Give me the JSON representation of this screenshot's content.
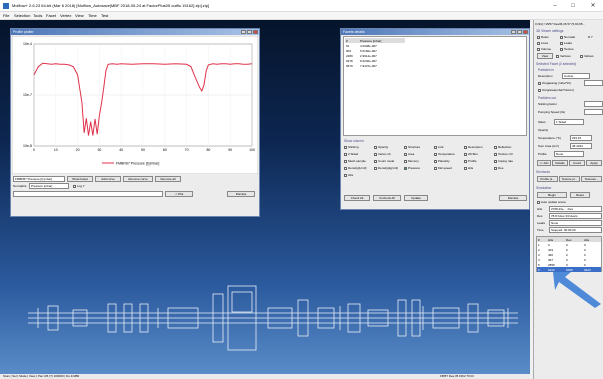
{
  "titlebar": {
    "title": "Molflow+ 2.6.23 64-bit (Mar 6 2018) [Molflow_Autosave|MBF 2018-05-24 at FactorPlus05 outflo 15162].zip].zip]",
    "minimize": "–",
    "maximize": "□",
    "close": "✕"
  },
  "menu": [
    "File",
    "Selection",
    "Tools",
    "Facet",
    "Vertex",
    "View",
    "Time",
    "Test"
  ],
  "profile_window": {
    "title": "Profile plotter",
    "legend": "FMBFB7 Pressure [l] [mbar]",
    "facet_select": "FMBFB7 Pressure [l] [mbar]",
    "normalize_label": "Normalize",
    "normalize_value": "Pressure [mbar]",
    "logy_label": "Log Y",
    "buttons": [
      "Show Facet",
      "Add curve",
      "Remove curve",
      "Remove all"
    ],
    "plot_button": "-> Plot",
    "dismiss": "Dismiss"
  },
  "chart_data": {
    "type": "line",
    "title": "",
    "xlabel": "",
    "ylabel": "",
    "ylog": true,
    "ylim": [
      0.0001,
      0.01
    ],
    "y_tick_labels": [
      "10e-4",
      "10e-7",
      "10e-8"
    ],
    "x_tick_labels": [
      "0",
      "10",
      "20",
      "30",
      "40",
      "50",
      "60",
      "70",
      "80",
      "90",
      "100"
    ],
    "series": [
      {
        "name": "FMBFB7 Pressure [l] [mbar]",
        "color": "#e0314a",
        "x": [
          0,
          2,
          4,
          6,
          8,
          10,
          12,
          14,
          16,
          18,
          20,
          22,
          23,
          24,
          25,
          26,
          27,
          28,
          29,
          30,
          31,
          32,
          33,
          34,
          36,
          38,
          40,
          45,
          50,
          55,
          60,
          65,
          70,
          72,
          74,
          76,
          77,
          78,
          79,
          80,
          82,
          84,
          86,
          88,
          90,
          92,
          94,
          96,
          98,
          100
        ],
        "y": [
          0.0025,
          0.0036,
          0.0042,
          0.0041,
          0.004,
          0.0041,
          0.004,
          0.004,
          0.0039,
          0.0036,
          0.0025,
          0.0007,
          0.00018,
          0.00035,
          0.00016,
          0.0003,
          0.00016,
          0.00034,
          0.00017,
          0.0004,
          0.0007,
          0.0014,
          0.003,
          0.004,
          0.0041,
          0.004,
          0.0041,
          0.004,
          0.0041,
          0.0041,
          0.004,
          0.0041,
          0.004,
          0.0036,
          0.0022,
          0.0014,
          0.0012,
          0.0016,
          0.003,
          0.0039,
          0.0041,
          0.004,
          0.0041,
          0.0041,
          0.004,
          0.0041,
          0.0041,
          0.004,
          0.004,
          0.0041
        ]
      }
    ]
  },
  "facets_window": {
    "title": "Facets details",
    "columns": [
      "#",
      "Pressure [mbar]"
    ],
    "rows": [
      [
        "91",
        "4.0938e-007"
      ],
      [
        "903",
        "5.0160e-007"
      ],
      [
        "2489",
        "2.9914e-007"
      ],
      [
        "9278",
        "9.0240e-007"
      ],
      [
        "9679",
        "7.9437e-007"
      ]
    ],
    "show_column_label": "Show column",
    "checkboxes": [
      "Sticking",
      "Opacity",
      "Structure",
      "Link",
      "Desorption",
      "Reflection",
      "2 Sided",
      "Vertex nb",
      "Area",
      "Temperature",
      "2D Box",
      "Texture UV",
      "Mesh sample",
      "Count mode",
      "Memory",
      "Planarity",
      "Profile",
      "Imping rate",
      "Density[1/m3]",
      "Density[kg/m3]",
      "Pressure",
      "Mol.speed",
      "Hits",
      "Des.",
      "Abs"
    ],
    "check_all": "Check All",
    "uncheck_all": "Uncheck All",
    "update": "Update",
    "dismiss": "Dismiss"
  },
  "right_panel": {
    "header": "0 (94) f 15/57 Des36,36 57 (5,90,95...",
    "viewer_settings": "3D Viewer settings",
    "viewer_options": [
      "Rules",
      "Normals",
      "Lines",
      "Leaks",
      "Volume",
      "Texture",
      "View",
      "Vertices",
      "Indices"
    ],
    "zoom_value": "D.7",
    "selected_facet": "Selected Facet (0 selected)",
    "particles_in": "Particles in",
    "desorption_label": "Desorption",
    "desorption_value": "Cosine",
    "outgassing_label": "Outgassing (mbar*l/s)",
    "outgassing_unit": "Outg/area(mbar*l/s/cm²)",
    "particles_out": "Particles out",
    "sticking_label": "Sticking factor",
    "pumping_label": "Pumping Speed (l/s)",
    "sides_label": "Sides",
    "sides_value": "1 Sided",
    "opacity_label": "Opacity",
    "temperature_label": "Temperature (°K)",
    "temperature_value": "293.15",
    "area_label": "Sum Area (cm²)",
    "area_value": "38.4234",
    "profile_label": "Profile",
    "profile_value": "None",
    "facet_buttons": [
      "<< Adv",
      "Details",
      "Coord",
      "Apply"
    ],
    "shortcuts_label": "Shortcuts",
    "shortcut_buttons": [
      "Profile pl...",
      "Texture pl...",
      "Textures..."
    ],
    "simulation_label": "Simulation",
    "start_button": "Begin",
    "reset_button": "Reset",
    "auto_update": "Auto update scene",
    "stats": [
      [
        "Hits",
        "2768.43e ... Des"
      ],
      [
        "Des",
        "78.8 Kdes 3/3 des/s"
      ],
      [
        "Leaks",
        "None"
      ],
      [
        "Time",
        "Stopped: 00:00:00"
      ]
    ],
    "table_headers": [
      "#",
      "Hits",
      "Des",
      "Abs"
    ],
    "table_rows": [
      [
        "1",
        "0",
        "0",
        "0"
      ],
      [
        "2",
        "403",
        "0",
        "0"
      ],
      [
        "3",
        "460",
        "0",
        "0"
      ],
      [
        "4",
        "397",
        "0",
        "0"
      ],
      [
        "5",
        "2895",
        "0",
        "0"
      ],
      [
        "6",
        "9223",
        "9485",
        "9223"
      ]
    ]
  },
  "statusbar": {
    "left": "Scan | Sel | Mode | View | Pan 3/6 (?) 100000 | Ds 2/4/B0",
    "right": "FB/57 Des:35 FR/2 Tr/C3"
  }
}
